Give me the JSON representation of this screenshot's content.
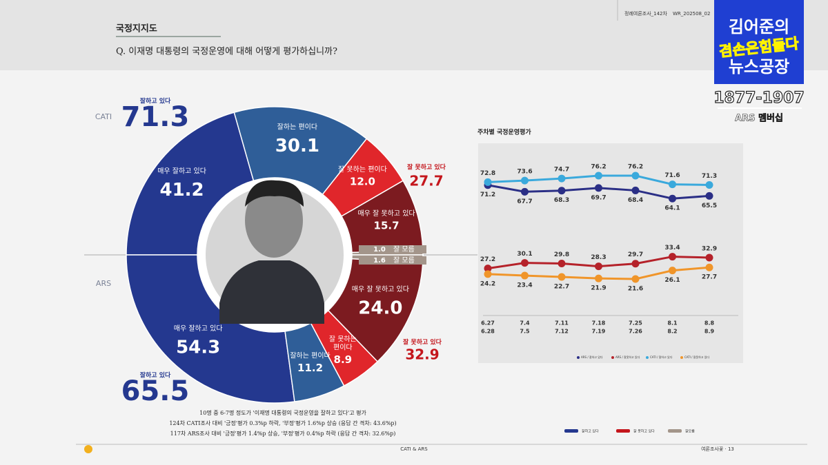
{
  "header": {
    "section": "국정지지도",
    "question": "Q. 이재명 대통령의 국정운영에 대해 어떻게 평가하십니까?",
    "doc_ref": "정례여론조사_142차",
    "doc_code": "WR_202508_02"
  },
  "logo": {
    "line1": "김어준의",
    "overlay": "겸손은힘들다",
    "line2": "뉴스공장",
    "phone": "1877-1907",
    "membership": "ARS 멤버십"
  },
  "chart_data": [
    {
      "type": "donut",
      "name": "CATI",
      "half": "top",
      "categories": [
        "매우 잘하고 있다",
        "잘하는 편이다",
        "잘 못하는 편이다",
        "매우 잘 못하고 있다",
        "잘 모름"
      ],
      "values": [
        41.2,
        30.1,
        12,
        15.7,
        1
      ],
      "value_labels": [
        "41.2",
        "30.1",
        "12.0",
        "15.7",
        "1.0"
      ],
      "colors": [
        "#24388f",
        "#2f5e98",
        "#e0262b",
        "#7c1b20",
        "#a3958a"
      ],
      "totals": [
        {
          "label": "잘하고 있다",
          "value": 71.3,
          "color": "#24388f"
        },
        {
          "label": "잘 못하고 있다",
          "value": 27.7,
          "color": "#c4161c"
        }
      ]
    },
    {
      "type": "donut",
      "name": "ARS",
      "half": "bottom",
      "categories": [
        "매우 잘하고 있다",
        "잘하는 편이다",
        "잘 못하는\n편이다",
        "매우 잘 못하고 있다",
        "잘 모름"
      ],
      "values": [
        54.3,
        11.2,
        8.9,
        24,
        1.6
      ],
      "value_labels": [
        "54.3",
        "11.2",
        "8.9",
        "24.0",
        "1.6"
      ],
      "colors": [
        "#24388f",
        "#2f5e98",
        "#e0262b",
        "#7c1b20",
        "#a3958a"
      ],
      "totals": [
        {
          "label": "잘하고 있다",
          "value": 65.5,
          "color": "#24388f"
        },
        {
          "label": "잘 못하고 있다",
          "value": 32.9,
          "color": "#c4161c"
        }
      ]
    },
    {
      "type": "line",
      "title": "주차별 국정운영평가",
      "categories": [
        "6.27",
        "7.4",
        "7.11",
        "7.18",
        "7.25",
        "8.1",
        "8.8"
      ],
      "categories_sub": [
        "6.28",
        "7.5",
        "7.12",
        "7.19",
        "7.26",
        "8.2",
        "8.9"
      ],
      "series": [
        {
          "name": "ARS / 잘하고 있다",
          "color": "#2b2f86",
          "values": [
            71.2,
            67.7,
            68.3,
            69.7,
            68.4,
            64.1,
            65.5
          ]
        },
        {
          "name": "ARS / 잘못하고 있다",
          "color": "#b5222a",
          "values": [
            27.2,
            30.1,
            29.8,
            28.3,
            29.7,
            33.4,
            32.9
          ]
        },
        {
          "name": "CATI / 잘하고 있다",
          "color": "#3aa9dc",
          "values": [
            72.8,
            73.6,
            74.7,
            76.2,
            76.2,
            71.6,
            71.3
          ]
        },
        {
          "name": "CATI / 잘못하고 있다",
          "color": "#f0952a",
          "values": [
            24.2,
            23.4,
            22.7,
            21.9,
            21.6,
            26.1,
            27.7
          ]
        }
      ]
    }
  ],
  "legend": [
    {
      "name": "잘하고 있다",
      "color": "#24388f"
    },
    {
      "name": "잘 못하고 있다",
      "color": "#c4161c"
    },
    {
      "name": "잘모름",
      "color": "#a3958a"
    }
  ],
  "notes": [
    "10명 중 6-7명 정도가 '이재명 대통령의 국정운영을 잘하고 있다'고 평가",
    "124차 CATI조사 대비 '긍정'평가 0.3%p 하락, '부정'평가 1.6%p 상승 (응답 간 격차: 43.6%p)",
    "117차 ARS조사 대비 '긍정'평가 1.4%p 상승, '부정'평가 0.4%p 하락 (응답 간 격차: 32.6%p)"
  ],
  "footer": {
    "center": "CATI & ARS",
    "page": "여론조사꽃 · 13"
  }
}
